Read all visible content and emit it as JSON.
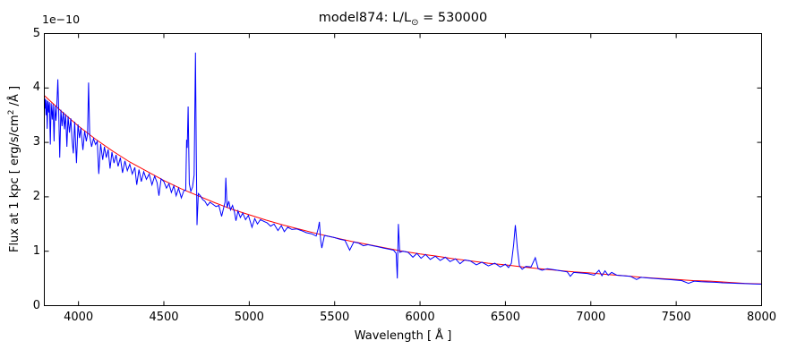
{
  "title": {
    "prefix": "model874: L/L",
    "sun_symbol": "⊙",
    "suffix": " = 530000"
  },
  "y_axis": {
    "label_prefix": "Flux at 1 kpc [ erg/s/cm",
    "label_sup": "2",
    "label_suffix": " /Å ]",
    "offset_text": "1e−10"
  },
  "x_axis": {
    "label": "Wavelength [ Å ]"
  },
  "colors": {
    "spectrum": "#0000ff",
    "continuum": "#ff0000",
    "frame": "#000000",
    "background": "#ffffff"
  },
  "chart_data": {
    "type": "line",
    "title": "model874: L/L⊙ = 530000",
    "xlabel": "Wavelength [ Å ]",
    "ylabel": "Flux at 1 kpc [ erg/s/cm² /Å ]",
    "y_offset_factor": "1e-10",
    "xlim": [
      3800,
      8000
    ],
    "ylim": [
      0,
      5
    ],
    "x_ticks": [
      4000,
      4500,
      5000,
      5500,
      6000,
      6500,
      7000,
      7500,
      8000
    ],
    "y_ticks": [
      0,
      1,
      2,
      3,
      4,
      5
    ],
    "grid": false,
    "legend": "none",
    "series": [
      {
        "name": "continuum-fit",
        "color": "#ff0000",
        "points": [
          [
            3800,
            3.86
          ],
          [
            3900,
            3.57
          ],
          [
            4000,
            3.3
          ],
          [
            4100,
            3.06
          ],
          [
            4200,
            2.84
          ],
          [
            4300,
            2.64
          ],
          [
            4400,
            2.47
          ],
          [
            4500,
            2.3
          ],
          [
            4600,
            2.15
          ],
          [
            4700,
            2.02
          ],
          [
            4800,
            1.89
          ],
          [
            4900,
            1.77
          ],
          [
            5000,
            1.67
          ],
          [
            5100,
            1.57
          ],
          [
            5200,
            1.48
          ],
          [
            5300,
            1.4
          ],
          [
            5400,
            1.32
          ],
          [
            5500,
            1.25
          ],
          [
            5600,
            1.18
          ],
          [
            5700,
            1.12
          ],
          [
            5800,
            1.06
          ],
          [
            5900,
            1.0
          ],
          [
            6000,
            0.95
          ],
          [
            6100,
            0.91
          ],
          [
            6200,
            0.86
          ],
          [
            6300,
            0.82
          ],
          [
            6400,
            0.78
          ],
          [
            6500,
            0.75
          ],
          [
            6600,
            0.71
          ],
          [
            6700,
            0.68
          ],
          [
            6800,
            0.65
          ],
          [
            6900,
            0.62
          ],
          [
            7000,
            0.6
          ],
          [
            7100,
            0.57
          ],
          [
            7200,
            0.55
          ],
          [
            7300,
            0.52
          ],
          [
            7400,
            0.5
          ],
          [
            7500,
            0.48
          ],
          [
            7600,
            0.46
          ],
          [
            7700,
            0.45
          ],
          [
            7800,
            0.43
          ],
          [
            7900,
            0.41
          ],
          [
            8000,
            0.4
          ]
        ]
      },
      {
        "name": "model-spectrum",
        "color": "#0000ff",
        "points": [
          [
            3800,
            3.86
          ],
          [
            3803,
            3.62
          ],
          [
            3806,
            3.8
          ],
          [
            3810,
            3.5
          ],
          [
            3813,
            3.78
          ],
          [
            3817,
            3.25
          ],
          [
            3821,
            3.76
          ],
          [
            3826,
            3.55
          ],
          [
            3830,
            3.74
          ],
          [
            3835,
            2.96
          ],
          [
            3840,
            3.72
          ],
          [
            3846,
            3.42
          ],
          [
            3851,
            3.7
          ],
          [
            3857,
            3.02
          ],
          [
            3862,
            3.67
          ],
          [
            3868,
            3.4
          ],
          [
            3873,
            3.65
          ],
          [
            3879,
            4.16
          ],
          [
            3884,
            3.62
          ],
          [
            3890,
            2.72
          ],
          [
            3897,
            3.6
          ],
          [
            3904,
            3.3
          ],
          [
            3911,
            3.56
          ],
          [
            3918,
            3.24
          ],
          [
            3925,
            3.52
          ],
          [
            3932,
            2.92
          ],
          [
            3939,
            3.48
          ],
          [
            3947,
            3.18
          ],
          [
            3955,
            3.44
          ],
          [
            3962,
            3.06
          ],
          [
            3970,
            2.8
          ],
          [
            3978,
            3.38
          ],
          [
            3988,
            2.62
          ],
          [
            3997,
            3.33
          ],
          [
            4006,
            3.08
          ],
          [
            4014,
            3.27
          ],
          [
            4026,
            2.86
          ],
          [
            4036,
            3.21
          ],
          [
            4046,
            3.02
          ],
          [
            4053,
            3.16
          ],
          [
            4059,
            4.1
          ],
          [
            4066,
            3.12
          ],
          [
            4077,
            2.92
          ],
          [
            4088,
            3.07
          ],
          [
            4100,
            2.96
          ],
          [
            4110,
            3.02
          ],
          [
            4119,
            2.42
          ],
          [
            4130,
            2.97
          ],
          [
            4142,
            2.68
          ],
          [
            4152,
            2.92
          ],
          [
            4163,
            2.72
          ],
          [
            4174,
            2.87
          ],
          [
            4185,
            2.52
          ],
          [
            4196,
            2.82
          ],
          [
            4208,
            2.62
          ],
          [
            4220,
            2.77
          ],
          [
            4232,
            2.56
          ],
          [
            4245,
            2.72
          ],
          [
            4258,
            2.44
          ],
          [
            4272,
            2.66
          ],
          [
            4286,
            2.48
          ],
          [
            4300,
            2.6
          ],
          [
            4315,
            2.42
          ],
          [
            4330,
            2.54
          ],
          [
            4341,
            2.22
          ],
          [
            4354,
            2.5
          ],
          [
            4368,
            2.28
          ],
          [
            4382,
            2.46
          ],
          [
            4398,
            2.32
          ],
          [
            4414,
            2.42
          ],
          [
            4430,
            2.22
          ],
          [
            4446,
            2.38
          ],
          [
            4460,
            2.26
          ],
          [
            4471,
            2.02
          ],
          [
            4484,
            2.33
          ],
          [
            4500,
            2.28
          ],
          [
            4515,
            2.16
          ],
          [
            4530,
            2.24
          ],
          [
            4544,
            2.08
          ],
          [
            4558,
            2.2
          ],
          [
            4572,
            2.02
          ],
          [
            4586,
            2.16
          ],
          [
            4602,
            1.98
          ],
          [
            4618,
            2.12
          ],
          [
            4628,
            2.12
          ],
          [
            4633,
            3.05
          ],
          [
            4637,
            2.9
          ],
          [
            4642,
            3.66
          ],
          [
            4649,
            2.24
          ],
          [
            4658,
            2.1
          ],
          [
            4668,
            2.18
          ],
          [
            4677,
            2.4
          ],
          [
            4685,
            4.65
          ],
          [
            4690,
            2.8
          ],
          [
            4694,
            1.48
          ],
          [
            4702,
            2.06
          ],
          [
            4714,
            2.02
          ],
          [
            4727,
            1.95
          ],
          [
            4740,
            1.92
          ],
          [
            4755,
            1.84
          ],
          [
            4770,
            1.9
          ],
          [
            4788,
            1.86
          ],
          [
            4805,
            1.82
          ],
          [
            4822,
            1.84
          ],
          [
            4838,
            1.64
          ],
          [
            4850,
            1.8
          ],
          [
            4858,
            1.9
          ],
          [
            4863,
            2.35
          ],
          [
            4870,
            1.8
          ],
          [
            4880,
            1.92
          ],
          [
            4890,
            1.76
          ],
          [
            4902,
            1.84
          ],
          [
            4913,
            1.72
          ],
          [
            4922,
            1.56
          ],
          [
            4934,
            1.74
          ],
          [
            4948,
            1.62
          ],
          [
            4962,
            1.7
          ],
          [
            4978,
            1.58
          ],
          [
            4995,
            1.66
          ],
          [
            5016,
            1.44
          ],
          [
            5032,
            1.6
          ],
          [
            5048,
            1.5
          ],
          [
            5065,
            1.58
          ],
          [
            5085,
            1.55
          ],
          [
            5105,
            1.52
          ],
          [
            5125,
            1.46
          ],
          [
            5145,
            1.5
          ],
          [
            5168,
            1.38
          ],
          [
            5188,
            1.47
          ],
          [
            5205,
            1.36
          ],
          [
            5225,
            1.44
          ],
          [
            5250,
            1.4
          ],
          [
            5278,
            1.41
          ],
          [
            5305,
            1.38
          ],
          [
            5335,
            1.34
          ],
          [
            5365,
            1.32
          ],
          [
            5392,
            1.28
          ],
          [
            5404,
            1.42
          ],
          [
            5411,
            1.54
          ],
          [
            5418,
            1.2
          ],
          [
            5425,
            1.06
          ],
          [
            5440,
            1.29
          ],
          [
            5470,
            1.27
          ],
          [
            5500,
            1.25
          ],
          [
            5530,
            1.22
          ],
          [
            5560,
            1.2
          ],
          [
            5588,
            1.02
          ],
          [
            5612,
            1.17
          ],
          [
            5640,
            1.15
          ],
          [
            5668,
            1.1
          ],
          [
            5695,
            1.12
          ],
          [
            5725,
            1.1
          ],
          [
            5755,
            1.08
          ],
          [
            5785,
            1.06
          ],
          [
            5815,
            1.04
          ],
          [
            5845,
            1.02
          ],
          [
            5860,
            0.96
          ],
          [
            5867,
            0.5
          ],
          [
            5873,
            1.5
          ],
          [
            5881,
            0.98
          ],
          [
            5900,
            1.0
          ],
          [
            5930,
            0.98
          ],
          [
            5958,
            0.89
          ],
          [
            5982,
            0.96
          ],
          [
            6006,
            0.87
          ],
          [
            6032,
            0.94
          ],
          [
            6060,
            0.85
          ],
          [
            6090,
            0.91
          ],
          [
            6118,
            0.83
          ],
          [
            6148,
            0.89
          ],
          [
            6176,
            0.81
          ],
          [
            6208,
            0.86
          ],
          [
            6234,
            0.77
          ],
          [
            6262,
            0.84
          ],
          [
            6295,
            0.82
          ],
          [
            6330,
            0.75
          ],
          [
            6362,
            0.8
          ],
          [
            6400,
            0.73
          ],
          [
            6438,
            0.78
          ],
          [
            6470,
            0.71
          ],
          [
            6500,
            0.76
          ],
          [
            6518,
            0.7
          ],
          [
            6535,
            0.78
          ],
          [
            6548,
            1.12
          ],
          [
            6558,
            1.48
          ],
          [
            6570,
            1.05
          ],
          [
            6582,
            0.73
          ],
          [
            6598,
            0.67
          ],
          [
            6620,
            0.72
          ],
          [
            6650,
            0.71
          ],
          [
            6675,
            0.88
          ],
          [
            6692,
            0.68
          ],
          [
            6715,
            0.65
          ],
          [
            6745,
            0.68
          ],
          [
            6785,
            0.66
          ],
          [
            6825,
            0.64
          ],
          [
            6862,
            0.62
          ],
          [
            6880,
            0.54
          ],
          [
            6900,
            0.61
          ],
          [
            6940,
            0.6
          ],
          [
            6980,
            0.59
          ],
          [
            7020,
            0.56
          ],
          [
            7048,
            0.65
          ],
          [
            7065,
            0.55
          ],
          [
            7083,
            0.64
          ],
          [
            7102,
            0.56
          ],
          [
            7122,
            0.61
          ],
          [
            7152,
            0.56
          ],
          [
            7192,
            0.55
          ],
          [
            7232,
            0.54
          ],
          [
            7268,
            0.48
          ],
          [
            7292,
            0.52
          ],
          [
            7330,
            0.51
          ],
          [
            7372,
            0.5
          ],
          [
            7412,
            0.49
          ],
          [
            7452,
            0.48
          ],
          [
            7492,
            0.47
          ],
          [
            7532,
            0.46
          ],
          [
            7572,
            0.41
          ],
          [
            7605,
            0.45
          ],
          [
            7645,
            0.44
          ],
          [
            7688,
            0.435
          ],
          [
            7730,
            0.43
          ],
          [
            7772,
            0.42
          ],
          [
            7815,
            0.415
          ],
          [
            7860,
            0.41
          ],
          [
            7905,
            0.405
          ],
          [
            7950,
            0.4
          ],
          [
            8000,
            0.395
          ]
        ]
      }
    ]
  }
}
